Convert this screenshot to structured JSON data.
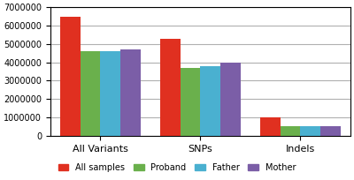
{
  "chart_data": {
    "type": "bar",
    "categories": [
      "All Variants",
      "SNPs",
      "Indels"
    ],
    "series": [
      {
        "name": "All samples",
        "color": "#e03020",
        "values": [
          6500000,
          5300000,
          1000000
        ]
      },
      {
        "name": "Proband",
        "color": "#6ab04c",
        "values": [
          4600000,
          3700000,
          550000
        ]
      },
      {
        "name": "Father",
        "color": "#4ab0d0",
        "values": [
          4600000,
          3800000,
          530000
        ]
      },
      {
        "name": "Mother",
        "color": "#7b5ea7",
        "values": [
          4700000,
          4000000,
          520000
        ]
      }
    ],
    "ylim": [
      0,
      7000000
    ],
    "yticks": [
      0,
      1000000,
      2000000,
      3000000,
      4000000,
      5000000,
      6000000,
      7000000
    ],
    "grid": true,
    "legend": "lower center"
  }
}
